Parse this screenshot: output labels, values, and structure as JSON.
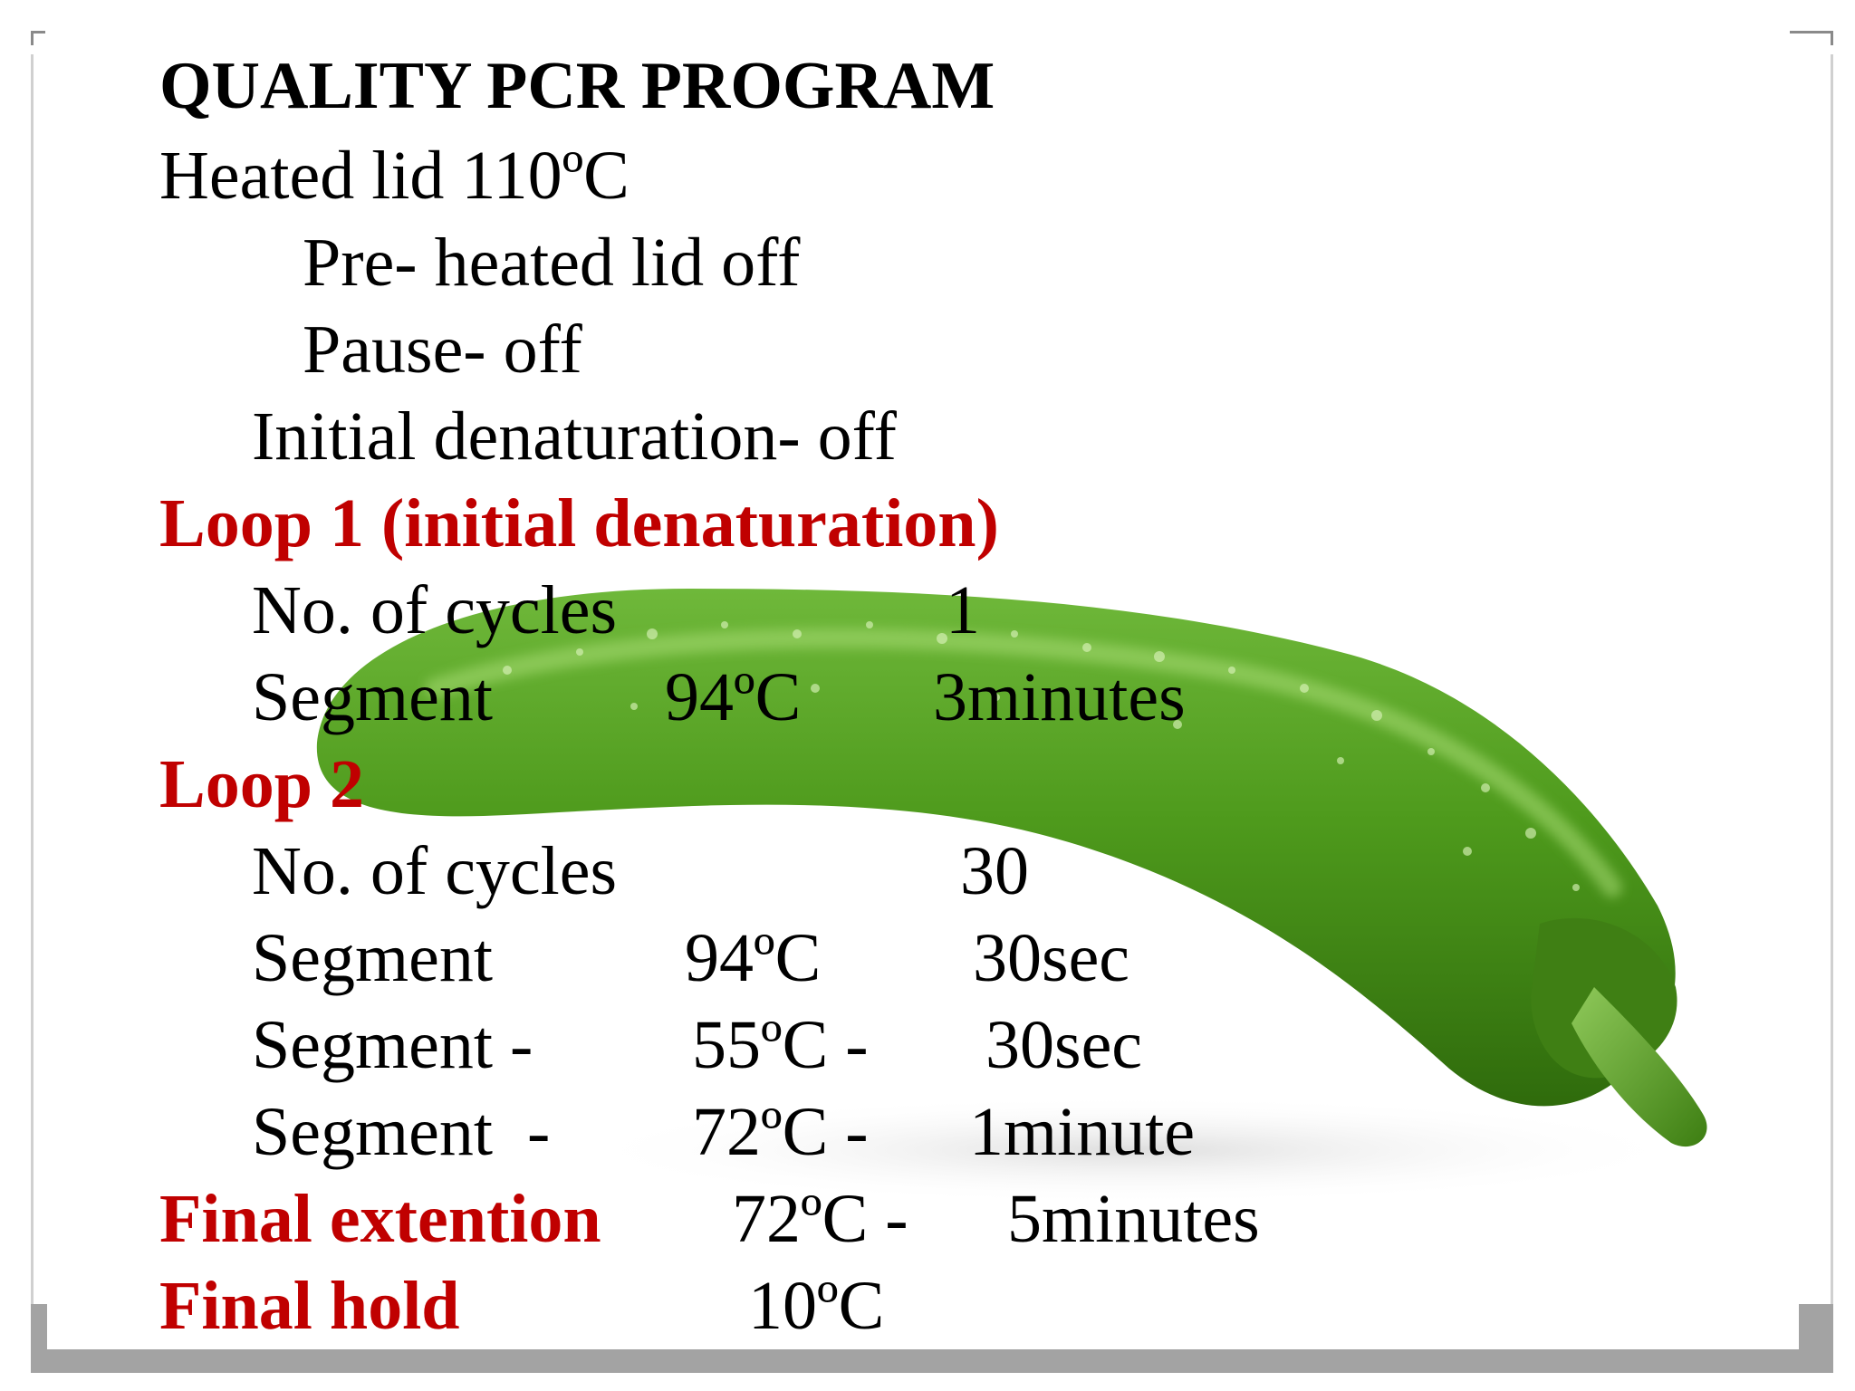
{
  "title": "QUALITY PCR PROGRAM",
  "heated_lid": "Heated lid 110ºC",
  "pre_heated": "Pre- heated lid off",
  "pause": "Pause- off",
  "initial_denaturation": "Initial denaturation- off",
  "loop1": {
    "heading": "Loop 1 (initial denaturation)",
    "cycles_label": "No. of cycles",
    "cycles_value": "1",
    "segment_label": "Segment",
    "segment_temp": "94ºC",
    "segment_time": "3minutes"
  },
  "loop2": {
    "heading": "Loop 2",
    "cycles_label": "No. of cycles",
    "cycles_value": "30",
    "segments": [
      {
        "label": "Segment",
        "temp": "94ºC",
        "time": "30sec"
      },
      {
        "label": "Segment -",
        "temp": "55ºC -",
        "time": "30sec"
      },
      {
        "label": "Segment  -",
        "temp": "72ºC -",
        "time": "1minute"
      }
    ]
  },
  "final_extension": {
    "label": "Final extention",
    "temp": "72ºC -",
    "time": "5minutes"
  },
  "final_hold": {
    "label": "Final hold",
    "temp": "10ºC"
  },
  "colors": {
    "heading_red": "#c00000",
    "pepper_green": "#4e9a1c",
    "text": "#000000"
  }
}
